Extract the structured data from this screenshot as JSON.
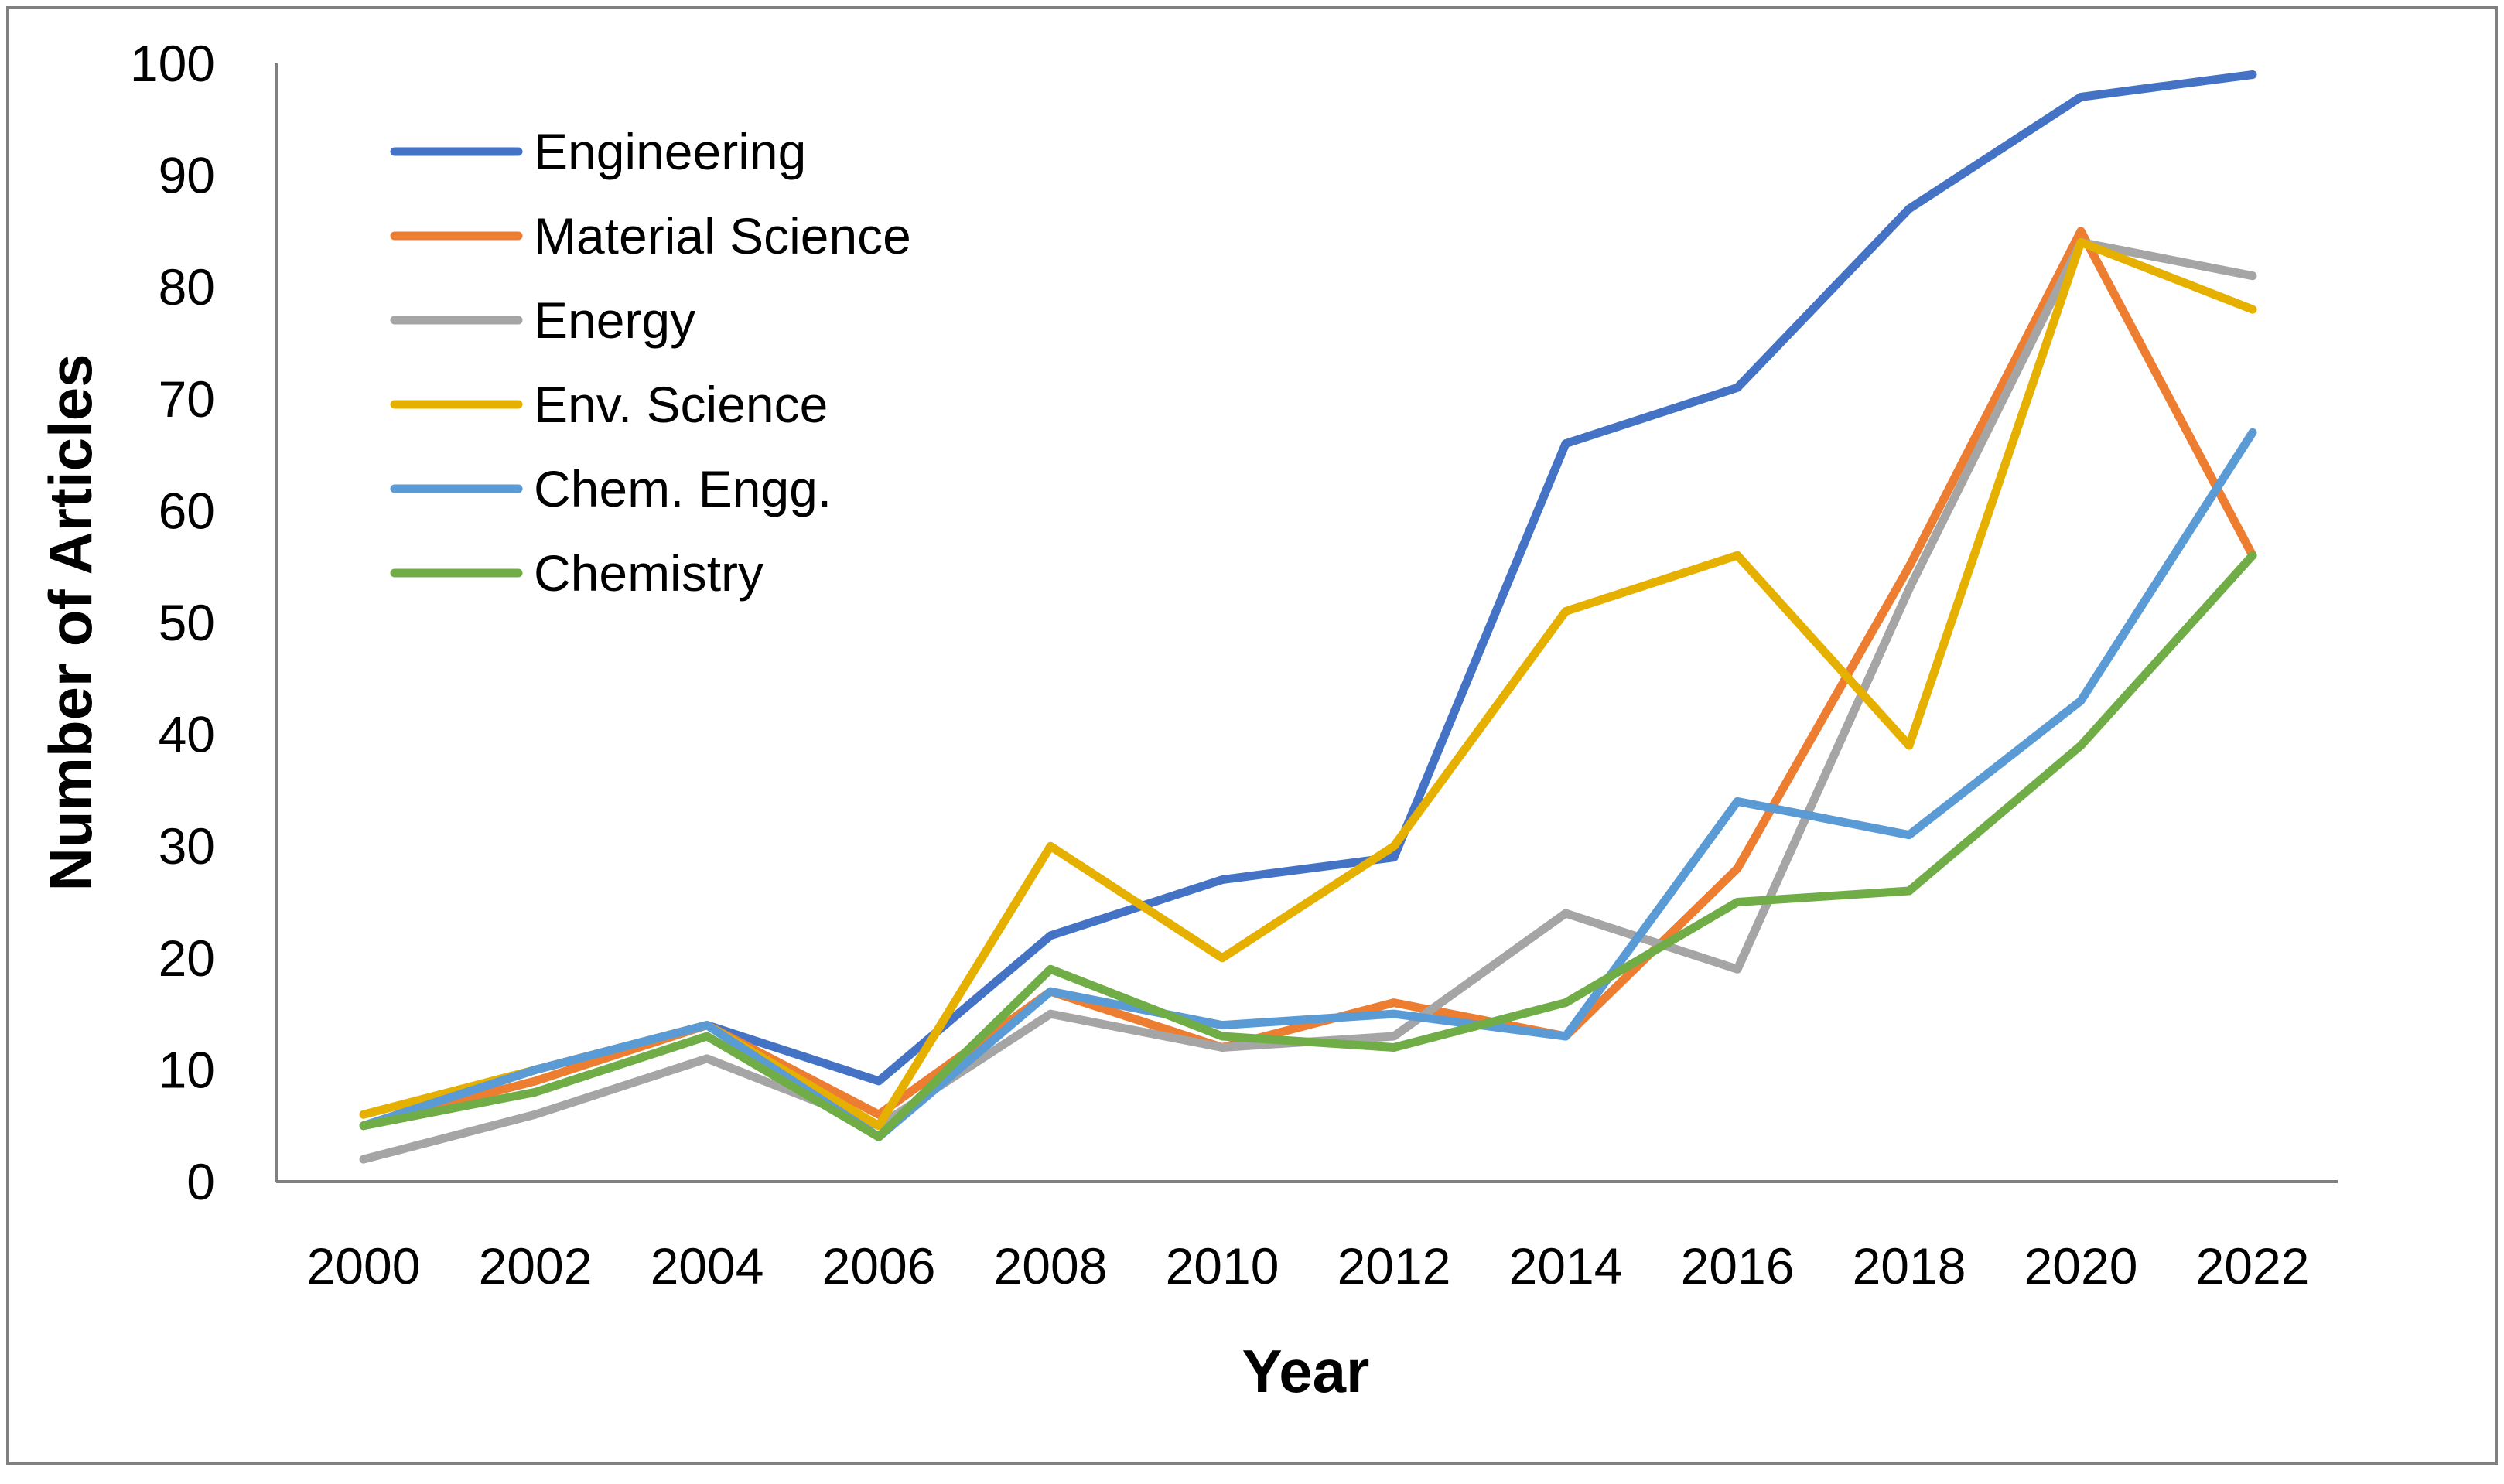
{
  "chart_data": {
    "type": "line",
    "title": "",
    "xlabel": "Year",
    "ylabel": "Number of Articles",
    "ylim": [
      0,
      100
    ],
    "yticks": [
      0,
      10,
      20,
      30,
      40,
      50,
      60,
      70,
      80,
      90,
      100
    ],
    "grid": false,
    "legend_position": "top-left",
    "categories": [
      "2000",
      "2002",
      "2004",
      "2006",
      "2008",
      "2010",
      "2012",
      "2014",
      "2016",
      "2018",
      "2020",
      "2022"
    ],
    "series": [
      {
        "name": "Engineering",
        "color": "#4472C4",
        "values": [
          5,
          10,
          14,
          9,
          22,
          27,
          29,
          66,
          71,
          87,
          97,
          99
        ]
      },
      {
        "name": "Material Science",
        "color": "#ED7D31",
        "values": [
          5,
          9,
          14,
          6,
          17,
          12,
          16,
          13,
          28,
          55,
          85,
          56
        ]
      },
      {
        "name": "Energy",
        "color": "#A5A5A5",
        "values": [
          2,
          6,
          11,
          5,
          15,
          12,
          13,
          24,
          19,
          53,
          84,
          81
        ]
      },
      {
        "name": "Env. Science",
        "color": "#E6B000",
        "values": [
          6,
          10,
          14,
          5,
          30,
          20,
          30,
          51,
          56,
          39,
          84,
          78
        ]
      },
      {
        "name": "Chem. Engg.",
        "color": "#5B9BD5",
        "values": [
          5,
          10,
          14,
          4,
          17,
          14,
          15,
          13,
          34,
          31,
          43,
          67
        ]
      },
      {
        "name": "Chemistry",
        "color": "#70AD47",
        "values": [
          5,
          8,
          13,
          4,
          19,
          13,
          12,
          16,
          25,
          26,
          39,
          56
        ]
      }
    ]
  }
}
